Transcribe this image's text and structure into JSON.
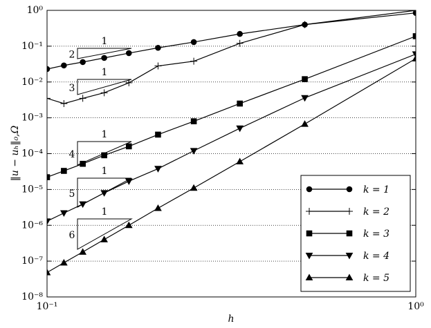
{
  "chart_data": {
    "type": "line",
    "x_label": "h",
    "y_label": "‖u − uₕ‖₀,Ω",
    "x": [
      0.1,
      0.1111,
      0.125,
      0.1429,
      0.1667,
      0.2,
      0.25,
      0.3333,
      0.5,
      1.0
    ],
    "series": [
      {
        "name": "k = 1",
        "color": "#000000",
        "marker": "circle",
        "values": [
          0.023,
          0.029,
          0.036,
          0.047,
          0.064,
          0.09,
          0.13,
          0.22,
          0.4,
          0.85
        ]
      },
      {
        "name": "k = 2",
        "color": "#000000",
        "marker": "plus",
        "values": [
          0.0035,
          0.0025,
          0.0035,
          0.005,
          0.0095,
          0.028,
          0.038,
          0.12,
          0.4,
          1.0
        ]
      },
      {
        "name": "k = 3",
        "color": "#000000",
        "marker": "square",
        "values": [
          2.2e-05,
          3.3e-05,
          5.2e-05,
          9e-05,
          0.00016,
          0.00034,
          0.0008,
          0.0025,
          0.012,
          0.19
        ]
      },
      {
        "name": "k = 4",
        "color": "#000000",
        "marker": "triangle-down",
        "values": [
          1.3e-06,
          2.2e-06,
          3.9e-06,
          8e-06,
          1.7e-05,
          3.8e-05,
          0.00012,
          0.00051,
          0.0036,
          0.06
        ]
      },
      {
        "name": "k = 5",
        "color": "#000000",
        "marker": "triangle-up",
        "values": [
          4.8e-08,
          9e-08,
          1.8e-07,
          4e-07,
          1e-06,
          3e-06,
          1.1e-05,
          6e-05,
          0.00067,
          0.045
        ]
      }
    ],
    "xlim": [
      0.1,
      1
    ],
    "ylim": [
      1e-08,
      1
    ],
    "xticks": [
      {
        "value": 0.1,
        "label": "10⁻¹"
      },
      {
        "value": 1,
        "label": "10⁰"
      }
    ],
    "yticks": [
      {
        "value": 1e-08,
        "label": "10⁻⁸"
      },
      {
        "value": 1e-07,
        "label": "10⁻⁷"
      },
      {
        "value": 1e-06,
        "label": "10⁻⁶"
      },
      {
        "value": 1e-05,
        "label": "10⁻⁵"
      },
      {
        "value": 0.0001,
        "label": "10⁻⁴"
      },
      {
        "value": 0.001,
        "label": "10⁻³"
      },
      {
        "value": 0.01,
        "label": "10⁻²"
      },
      {
        "value": 0.1,
        "label": "10⁻¹"
      },
      {
        "value": 1,
        "label": "10⁰"
      }
    ],
    "log_x": true,
    "log_y": true,
    "grid": "y",
    "legend": "lower right",
    "slope_triangles": [
      {
        "run": "1",
        "rise": "2"
      },
      {
        "run": "1",
        "rise": "3"
      },
      {
        "run": "1",
        "rise": "4"
      },
      {
        "run": "1",
        "rise": "5"
      },
      {
        "run": "1",
        "rise": "6"
      }
    ]
  }
}
